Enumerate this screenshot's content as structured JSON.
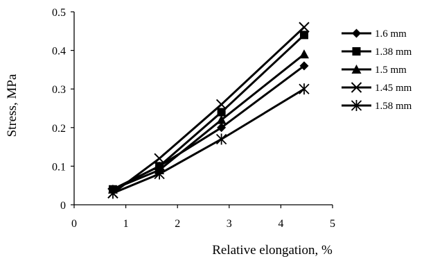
{
  "chart_data": {
    "type": "line",
    "title": "",
    "xlabel": "Relative elongation, %",
    "ylabel": "Stress, MPa",
    "xlim": [
      0,
      5
    ],
    "ylim": [
      0,
      0.5
    ],
    "xticks": [
      0,
      1,
      2,
      3,
      4,
      5
    ],
    "yticks": [
      0,
      0.1,
      0.2,
      0.3,
      0.4,
      0.5
    ],
    "x_tick_labels": [
      "0",
      "1",
      "2",
      "3",
      "4",
      "5"
    ],
    "y_tick_labels": [
      "0",
      "0.1",
      "0.2",
      "0.3",
      "0.4",
      "0.5"
    ],
    "grid": false,
    "legend_position": "right",
    "series": [
      {
        "name": "1.6 mm",
        "marker": "diamond",
        "x": [
          0.75,
          1.65,
          2.85,
          4.45
        ],
        "y": [
          0.04,
          0.1,
          0.2,
          0.36
        ]
      },
      {
        "name": "1.38 mm",
        "marker": "square",
        "x": [
          0.75,
          1.65,
          2.85,
          4.45
        ],
        "y": [
          0.04,
          0.1,
          0.24,
          0.44
        ]
      },
      {
        "name": "1.5 mm",
        "marker": "triangle",
        "x": [
          0.75,
          1.65,
          2.85,
          4.45
        ],
        "y": [
          0.04,
          0.09,
          0.22,
          0.39
        ]
      },
      {
        "name": "1.45 mm",
        "marker": "x",
        "x": [
          0.75,
          1.65,
          2.85,
          4.45
        ],
        "y": [
          0.03,
          0.12,
          0.26,
          0.46
        ]
      },
      {
        "name": "1.58 mm",
        "marker": "asterisk",
        "x": [
          0.75,
          1.65,
          2.85,
          4.45
        ],
        "y": [
          0.03,
          0.08,
          0.17,
          0.3
        ]
      }
    ]
  }
}
